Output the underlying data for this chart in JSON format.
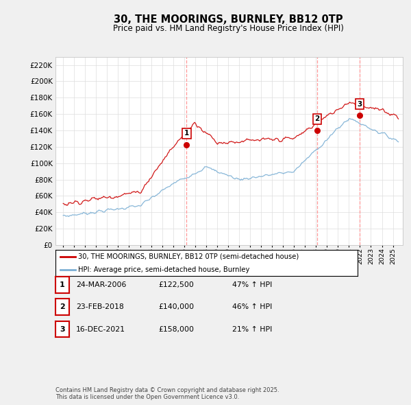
{
  "title": "30, THE MOORINGS, BURNLEY, BB12 0TP",
  "subtitle": "Price paid vs. HM Land Registry's House Price Index (HPI)",
  "ylim": [
    0,
    230000
  ],
  "yticks": [
    0,
    20000,
    40000,
    60000,
    80000,
    100000,
    120000,
    140000,
    160000,
    180000,
    200000,
    220000
  ],
  "xlim_left": 1994.3,
  "xlim_right": 2025.9,
  "sale_dates_num": [
    2006.23,
    2018.12,
    2021.96
  ],
  "sale_prices": [
    122500,
    140000,
    158000
  ],
  "sale_labels": [
    "1",
    "2",
    "3"
  ],
  "legend_red": "30, THE MOORINGS, BURNLEY, BB12 0TP (semi-detached house)",
  "legend_blue": "HPI: Average price, semi-detached house, Burnley",
  "table_data": [
    [
      "1",
      "24-MAR-2006",
      "£122,500",
      "47% ↑ HPI"
    ],
    [
      "2",
      "23-FEB-2018",
      "£140,000",
      "46% ↑ HPI"
    ],
    [
      "3",
      "16-DEC-2021",
      "£158,000",
      "21% ↑ HPI"
    ]
  ],
  "footnote": "Contains HM Land Registry data © Crown copyright and database right 2025.\nThis data is licensed under the Open Government Licence v3.0.",
  "red_color": "#cc0000",
  "blue_color": "#7bafd4",
  "vline_color": "#ff9999",
  "background_color": "#f0f0f0",
  "plot_bg_color": "#ffffff",
  "grid_color": "#dddddd"
}
